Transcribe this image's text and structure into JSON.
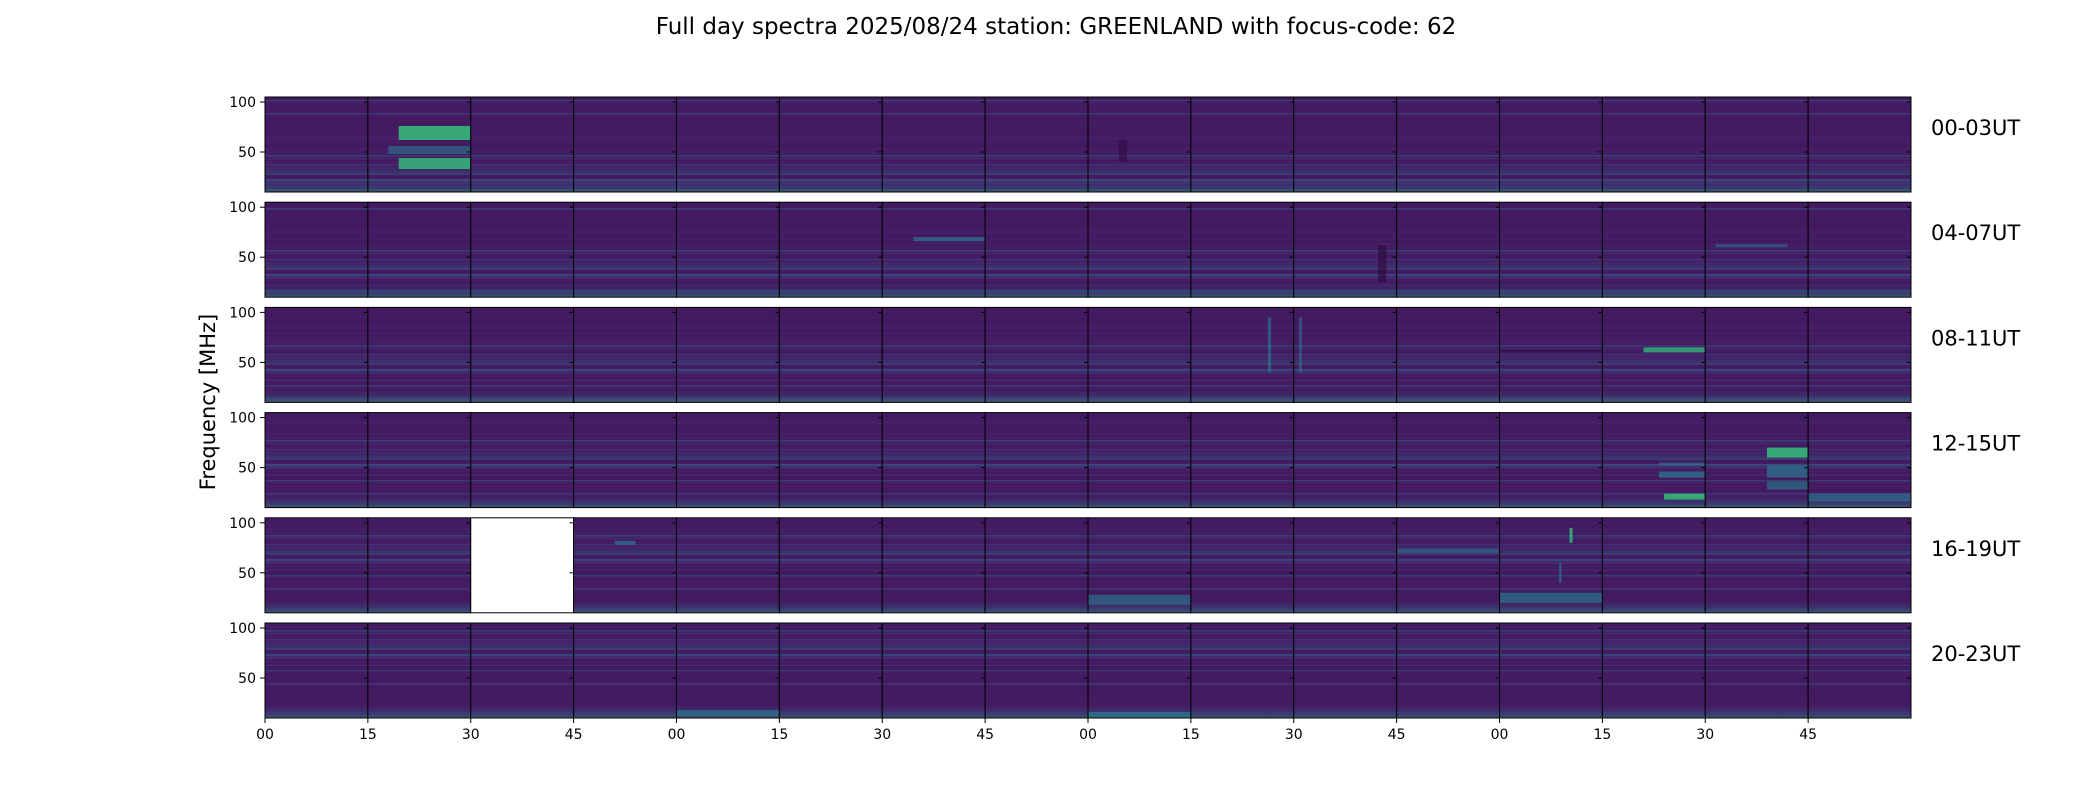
{
  "chart_data": {
    "type": "heatmap",
    "title": "Full day spectra 2025/08/24 station: GREENLAND with focus-code: 62",
    "ylabel": "Frequency [MHz]",
    "xlabel": "",
    "ylim": [
      10,
      105
    ],
    "yticks": [
      50,
      100
    ],
    "minutes_per_panel": 15,
    "panels_per_row": 16,
    "xtick_labels": [
      "00",
      "15",
      "30",
      "45",
      "00",
      "15",
      "30",
      "45",
      "00",
      "15",
      "30",
      "45",
      "00",
      "15",
      "30",
      "45"
    ],
    "colormap": {
      "background": "#43195f",
      "low": "#482878",
      "mid": "#2a788e",
      "high": "#35b779"
    },
    "rows": [
      {
        "label": "00-03UT",
        "hours": "00-03",
        "missing_panels": [],
        "features": [
          {
            "panel": 1,
            "type": "band",
            "freq": [
              62,
              76
            ],
            "t": [
              0.3,
              1.0
            ],
            "intensity": 0.75
          },
          {
            "panel": 1,
            "type": "band",
            "freq": [
              33,
              44
            ],
            "t": [
              0.3,
              1.0
            ],
            "intensity": 0.7
          },
          {
            "panel": 1,
            "type": "band",
            "freq": [
              48,
              56
            ],
            "t": [
              0.2,
              1.0
            ],
            "intensity": 0.45
          },
          {
            "panel": 8,
            "type": "band",
            "freq": [
              40,
              62
            ],
            "t": [
              0.3,
              0.38
            ],
            "intensity": -0.4
          }
        ]
      },
      {
        "label": "04-07UT",
        "hours": "04-07",
        "missing_panels": [],
        "features": [
          {
            "panel": 6,
            "type": "band",
            "freq": [
              66,
              70
            ],
            "t": [
              0.3,
              1.0
            ],
            "intensity": 0.55
          },
          {
            "panel": 10,
            "type": "band",
            "freq": [
              25,
              62
            ],
            "t": [
              0.82,
              0.9
            ],
            "intensity": -0.5
          },
          {
            "panel": 14,
            "type": "band",
            "freq": [
              60,
              63
            ],
            "t": [
              0.1,
              0.8
            ],
            "intensity": 0.4
          }
        ]
      },
      {
        "label": "08-11UT",
        "hours": "08-11",
        "missing_panels": [],
        "features": [
          {
            "panel": 9,
            "type": "band",
            "freq": [
              40,
              95
            ],
            "t": [
              0.75,
              0.78
            ],
            "intensity": 0.5
          },
          {
            "panel": 10,
            "type": "band",
            "freq": [
              40,
              95
            ],
            "t": [
              0.05,
              0.08
            ],
            "intensity": 0.4
          },
          {
            "panel": 13,
            "type": "band",
            "freq": [
              60,
              65
            ],
            "t": [
              0.4,
              1.0
            ],
            "intensity": 0.65
          },
          {
            "panel": 12,
            "type": "band",
            "freq": [
              60,
              63
            ],
            "t": [
              0.0,
              1.0
            ],
            "intensity": -0.35
          }
        ]
      },
      {
        "label": "12-15UT",
        "hours": "12-15",
        "missing_panels": [],
        "features": [
          {
            "panel": 13,
            "type": "band",
            "freq": [
              40,
              46
            ],
            "t": [
              0.55,
              1.0
            ],
            "intensity": 0.6
          },
          {
            "panel": 13,
            "type": "band",
            "freq": [
              52,
              55
            ],
            "t": [
              0.55,
              1.0
            ],
            "intensity": 0.5
          },
          {
            "panel": 13,
            "type": "band",
            "freq": [
              18,
              24
            ],
            "t": [
              0.6,
              1.0
            ],
            "intensity": 0.75
          },
          {
            "panel": 14,
            "type": "band",
            "freq": [
              60,
              70
            ],
            "t": [
              0.6,
              1.0
            ],
            "intensity": 0.75
          },
          {
            "panel": 14,
            "type": "band",
            "freq": [
              40,
              52
            ],
            "t": [
              0.6,
              1.0
            ],
            "intensity": 0.55
          },
          {
            "panel": 14,
            "type": "band",
            "freq": [
              28,
              36
            ],
            "t": [
              0.6,
              1.0
            ],
            "intensity": 0.5
          },
          {
            "panel": 15,
            "type": "band",
            "freq": [
              16,
              24
            ],
            "t": [
              0.0,
              1.0
            ],
            "intensity": 0.5
          }
        ]
      },
      {
        "label": "16-19UT",
        "hours": "16-19",
        "missing_panels": [
          2
        ],
        "features": [
          {
            "panel": 3,
            "type": "band",
            "freq": [
              78,
              82
            ],
            "t": [
              0.4,
              0.6
            ],
            "intensity": 0.55
          },
          {
            "panel": 8,
            "type": "band",
            "freq": [
              18,
              28
            ],
            "t": [
              0.0,
              1.0
            ],
            "intensity": 0.5
          },
          {
            "panel": 12,
            "type": "band",
            "freq": [
              20,
              30
            ],
            "t": [
              0.0,
              1.0
            ],
            "intensity": 0.55
          },
          {
            "panel": 12,
            "type": "band",
            "freq": [
              80,
              95
            ],
            "t": [
              0.68,
              0.71
            ],
            "intensity": 0.7
          },
          {
            "panel": 12,
            "type": "band",
            "freq": [
              40,
              60
            ],
            "t": [
              0.58,
              0.6
            ],
            "intensity": 0.6
          },
          {
            "panel": 11,
            "type": "band",
            "freq": [
              70,
              74
            ],
            "t": [
              0.0,
              1.0
            ],
            "intensity": 0.45
          }
        ]
      },
      {
        "label": "20-23UT",
        "hours": "20-23",
        "missing_panels": [],
        "features": [
          {
            "panel": 8,
            "type": "band",
            "freq": [
              10,
              16
            ],
            "t": [
              0.0,
              1.0
            ],
            "intensity": 0.6
          },
          {
            "panel": 4,
            "type": "band",
            "freq": [
              12,
              18
            ],
            "t": [
              0.0,
              1.0
            ],
            "intensity": 0.5
          }
        ]
      }
    ]
  }
}
